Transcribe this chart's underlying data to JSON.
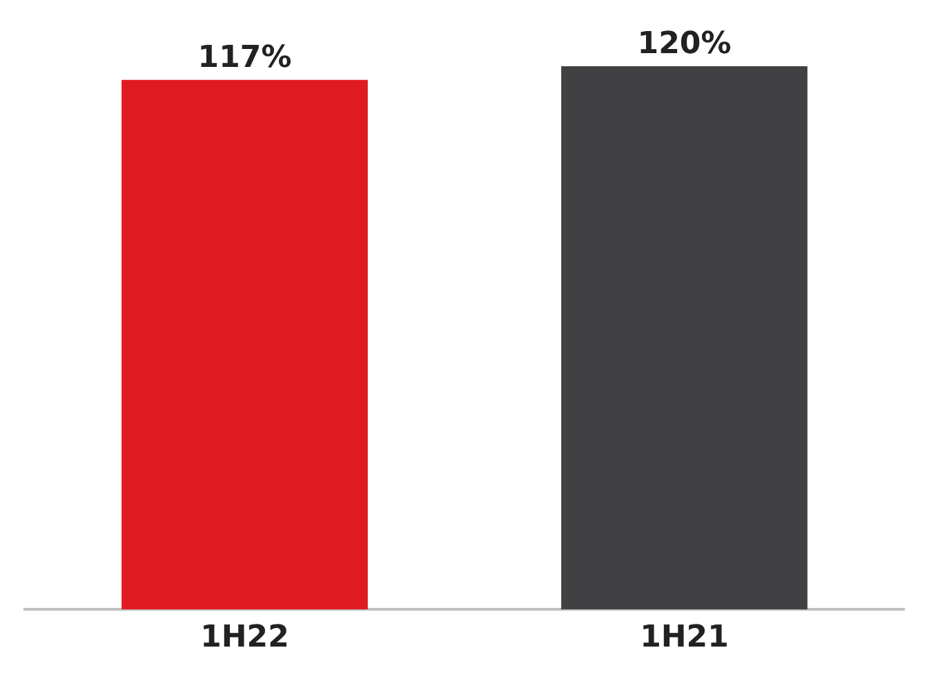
{
  "chart_data": {
    "type": "bar",
    "categories": [
      "1H22",
      "1H21"
    ],
    "values": [
      117,
      120
    ],
    "colors": [
      "#e01b22",
      "#414042"
    ],
    "value_labels": [
      "117%",
      "120%"
    ],
    "grid": false,
    "legend": false
  }
}
